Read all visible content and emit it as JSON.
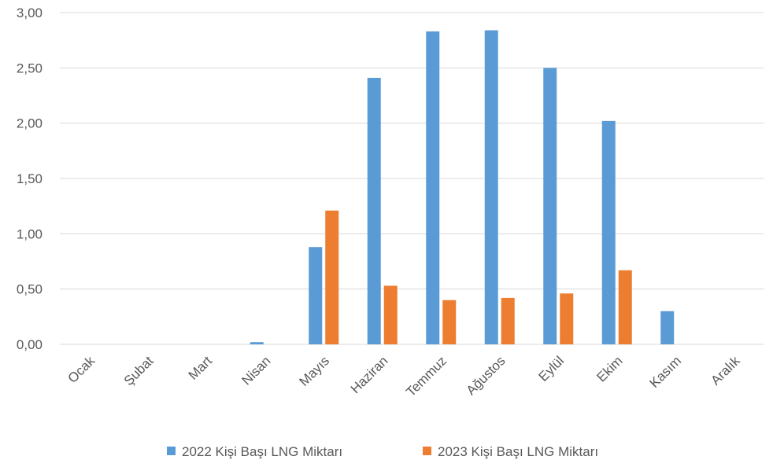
{
  "chart_data": {
    "type": "bar",
    "categories": [
      "Ocak",
      "Şubat",
      "Mart",
      "Nisan",
      "Mayıs",
      "Haziran",
      "Temmuz",
      "Ağustos",
      "Eylül",
      "Ekim",
      "Kasım",
      "Aralık"
    ],
    "series": [
      {
        "name": "2022 Kişi Başı LNG Miktarı",
        "color": "#5B9BD5",
        "values": [
          0,
          0,
          0,
          0.02,
          0.88,
          2.41,
          2.83,
          2.84,
          2.5,
          2.02,
          0.3,
          0
        ]
      },
      {
        "name": "2023 Kişi Başı LNG Miktarı",
        "color": "#ED7D31",
        "values": [
          0,
          0,
          0,
          0,
          1.21,
          0.53,
          0.4,
          0.42,
          0.46,
          0.67,
          0,
          0
        ]
      }
    ],
    "ylim": [
      0,
      3
    ],
    "yticks": [
      "0,00",
      "0,50",
      "1,00",
      "1,50",
      "2,00",
      "2,50",
      "3,00"
    ],
    "grid": true,
    "legend_position": "bottom",
    "title": "",
    "xlabel": "",
    "ylabel": ""
  }
}
